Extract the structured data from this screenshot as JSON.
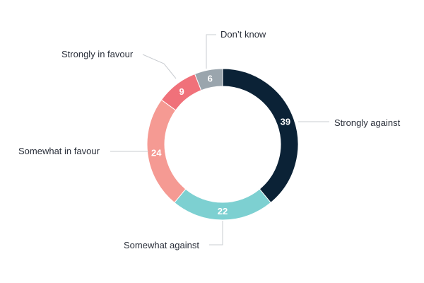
{
  "chart_data": {
    "type": "pie",
    "donut": true,
    "categories": [
      "Strongly against",
      "Somewhat against",
      "Somewhat in favour",
      "Strongly in favour",
      "Don’t know"
    ],
    "values": [
      39,
      22,
      24,
      9,
      6
    ],
    "colors": [
      "#0b2236",
      "#7dd0d1",
      "#f59a93",
      "#f0717a",
      "#9aa5ad"
    ],
    "title": "",
    "legend": "none"
  }
}
